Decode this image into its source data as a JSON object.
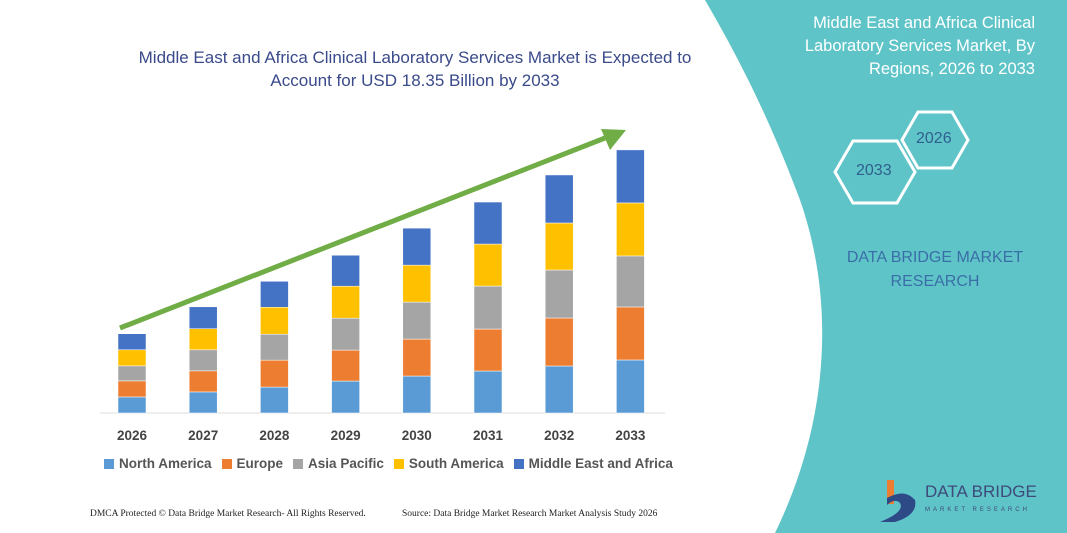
{
  "title": "Middle East and Africa Clinical Laboratory Services Market is Expected to Account for USD 18.35 Billion by 2033",
  "right_panel": {
    "title": "Middle East and Africa Clinical Laboratory Services Market, By Regions, 2026 to 2033",
    "hex_start": "2026",
    "hex_end": "2033",
    "brand": "DATA BRIDGE MARKET RESEARCH",
    "panel_color": "#5fc4c8"
  },
  "logo": {
    "name": "DATA BRIDGE",
    "subtitle": "MARKET RESEARCH"
  },
  "footer": {
    "left": "DMCA Protected © Data Bridge Market Research- All Rights Reserved.",
    "right": "Source: Data Bridge Market Research Market Analysis Study 2026"
  },
  "chart_data": {
    "type": "bar",
    "stacked": true,
    "unit": "USD Billion (estimated)",
    "categories": [
      "2026",
      "2027",
      "2028",
      "2029",
      "2030",
      "2031",
      "2032",
      "2033"
    ],
    "series": [
      {
        "name": "North America",
        "color": "#5b9bd5",
        "values": [
          1.12,
          1.47,
          1.81,
          2.23,
          2.58,
          2.93,
          3.28,
          3.7
        ]
      },
      {
        "name": "Europe",
        "color": "#ed7d31",
        "values": [
          1.12,
          1.47,
          1.88,
          2.16,
          2.58,
          2.93,
          3.35,
          3.7
        ]
      },
      {
        "name": "Asia Pacific",
        "color": "#a5a5a5",
        "values": [
          1.05,
          1.47,
          1.81,
          2.23,
          2.58,
          3.0,
          3.35,
          3.56
        ]
      },
      {
        "name": "South America",
        "color": "#ffc000",
        "values": [
          1.12,
          1.47,
          1.88,
          2.23,
          2.58,
          2.93,
          3.28,
          3.7
        ]
      },
      {
        "name": "Middle East and Africa",
        "color": "#4472c4",
        "values": [
          1.12,
          1.53,
          1.81,
          2.16,
          2.58,
          2.93,
          3.35,
          3.7
        ]
      }
    ],
    "legend": "bottom",
    "grid": false,
    "axis_y": "hidden",
    "trend_arrow_color": "#70ad47"
  }
}
